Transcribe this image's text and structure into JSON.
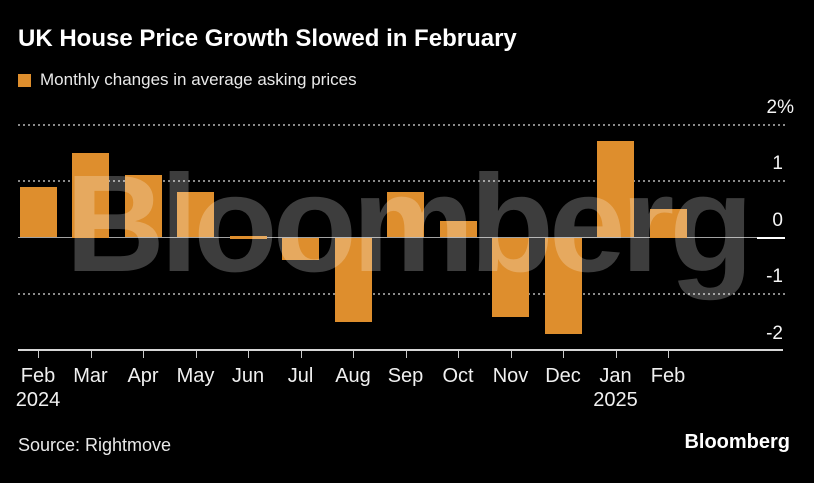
{
  "title": "UK House Price Growth Slowed in February",
  "legend": {
    "label": "Monthly changes in average asking prices"
  },
  "watermark": "Bloomberg",
  "footer": {
    "source": "Source: Rightmove",
    "brand": "Bloomberg"
  },
  "chart_data": {
    "type": "bar",
    "title": "UK House Price Growth Slowed in February",
    "series_name": "Monthly changes in average asking prices",
    "unit": "%",
    "categories": [
      "Feb 2024",
      "Mar 2024",
      "Apr 2024",
      "May 2024",
      "Jun 2024",
      "Jul 2024",
      "Aug 2024",
      "Sep 2024",
      "Oct 2024",
      "Nov 2024",
      "Dec 2024",
      "Jan 2025",
      "Feb 2025"
    ],
    "x_tick_labels": [
      "Feb",
      "Mar",
      "Apr",
      "May",
      "Jun",
      "Jul",
      "Aug",
      "Sep",
      "Oct",
      "Nov",
      "Dec",
      "Jan",
      "Feb"
    ],
    "year_markers": [
      {
        "index": 0,
        "label": "2024"
      },
      {
        "index": 11,
        "label": "2025"
      }
    ],
    "values": [
      0.9,
      1.5,
      1.1,
      0.8,
      0.0,
      -0.4,
      -1.5,
      0.8,
      0.3,
      -1.4,
      -1.7,
      1.7,
      0.5
    ],
    "ylim": [
      -2,
      2
    ],
    "yticks": [
      2,
      1,
      0,
      -1,
      -2
    ],
    "ytick_labels": [
      "2%",
      "1",
      "0",
      "-1",
      "-2"
    ],
    "grid": "horizontal-dotted",
    "legend_position": "top-left",
    "bar_color": "#DE8E2D",
    "colors": {
      "background": "#000000",
      "bar": "#DE8E2D",
      "text": "#F0F0F0",
      "grid": "#8A8A8A",
      "zero_line": "#A2A2A2",
      "axis": "#D6D6D6",
      "watermark_text": "rgba(255,255,255,0.24)"
    },
    "source": "Rightmove"
  }
}
